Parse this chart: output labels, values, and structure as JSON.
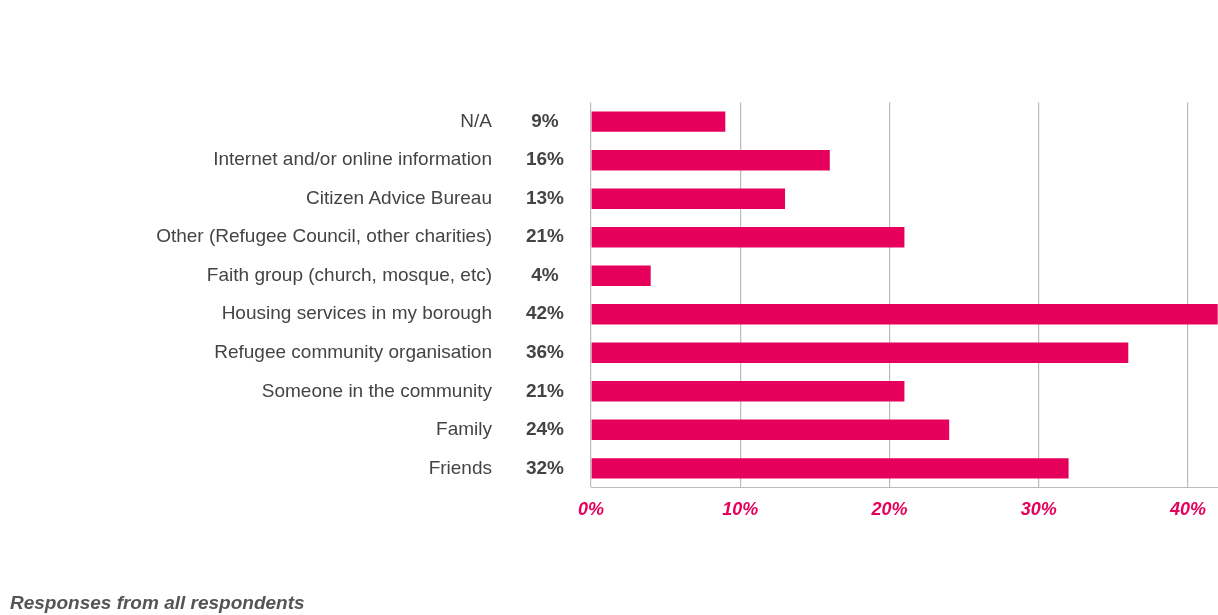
{
  "chart_data": {
    "type": "bar",
    "orientation": "horizontal",
    "categories": [
      "N/A",
      "Internet and/or online information",
      "Citizen Advice Bureau",
      "Other (Refugee Council, other charities)",
      "Faith group (church, mosque, etc)",
      "Housing services in my borough",
      "Refugee community organisation",
      "Someone in the community",
      "Family",
      "Friends"
    ],
    "values": [
      9,
      16,
      13,
      21,
      4,
      42,
      36,
      21,
      24,
      32
    ],
    "color": "#e6005c",
    "data_labels": true,
    "value_labels": [
      "9%",
      "16%",
      "13%",
      "21%",
      "4%",
      "42%",
      "36%",
      "21%",
      "24%",
      "32%"
    ],
    "xlim": [
      0,
      42
    ],
    "xticks": [
      {
        "value": 0,
        "label": "0%"
      },
      {
        "value": 10,
        "label": "10%"
      },
      {
        "value": 20,
        "label": "20%"
      },
      {
        "value": 30,
        "label": "30%"
      },
      {
        "value": 40,
        "label": "40%"
      }
    ],
    "grid": "x",
    "legend": false,
    "annotations": [
      "Responses from all respondents"
    ]
  }
}
